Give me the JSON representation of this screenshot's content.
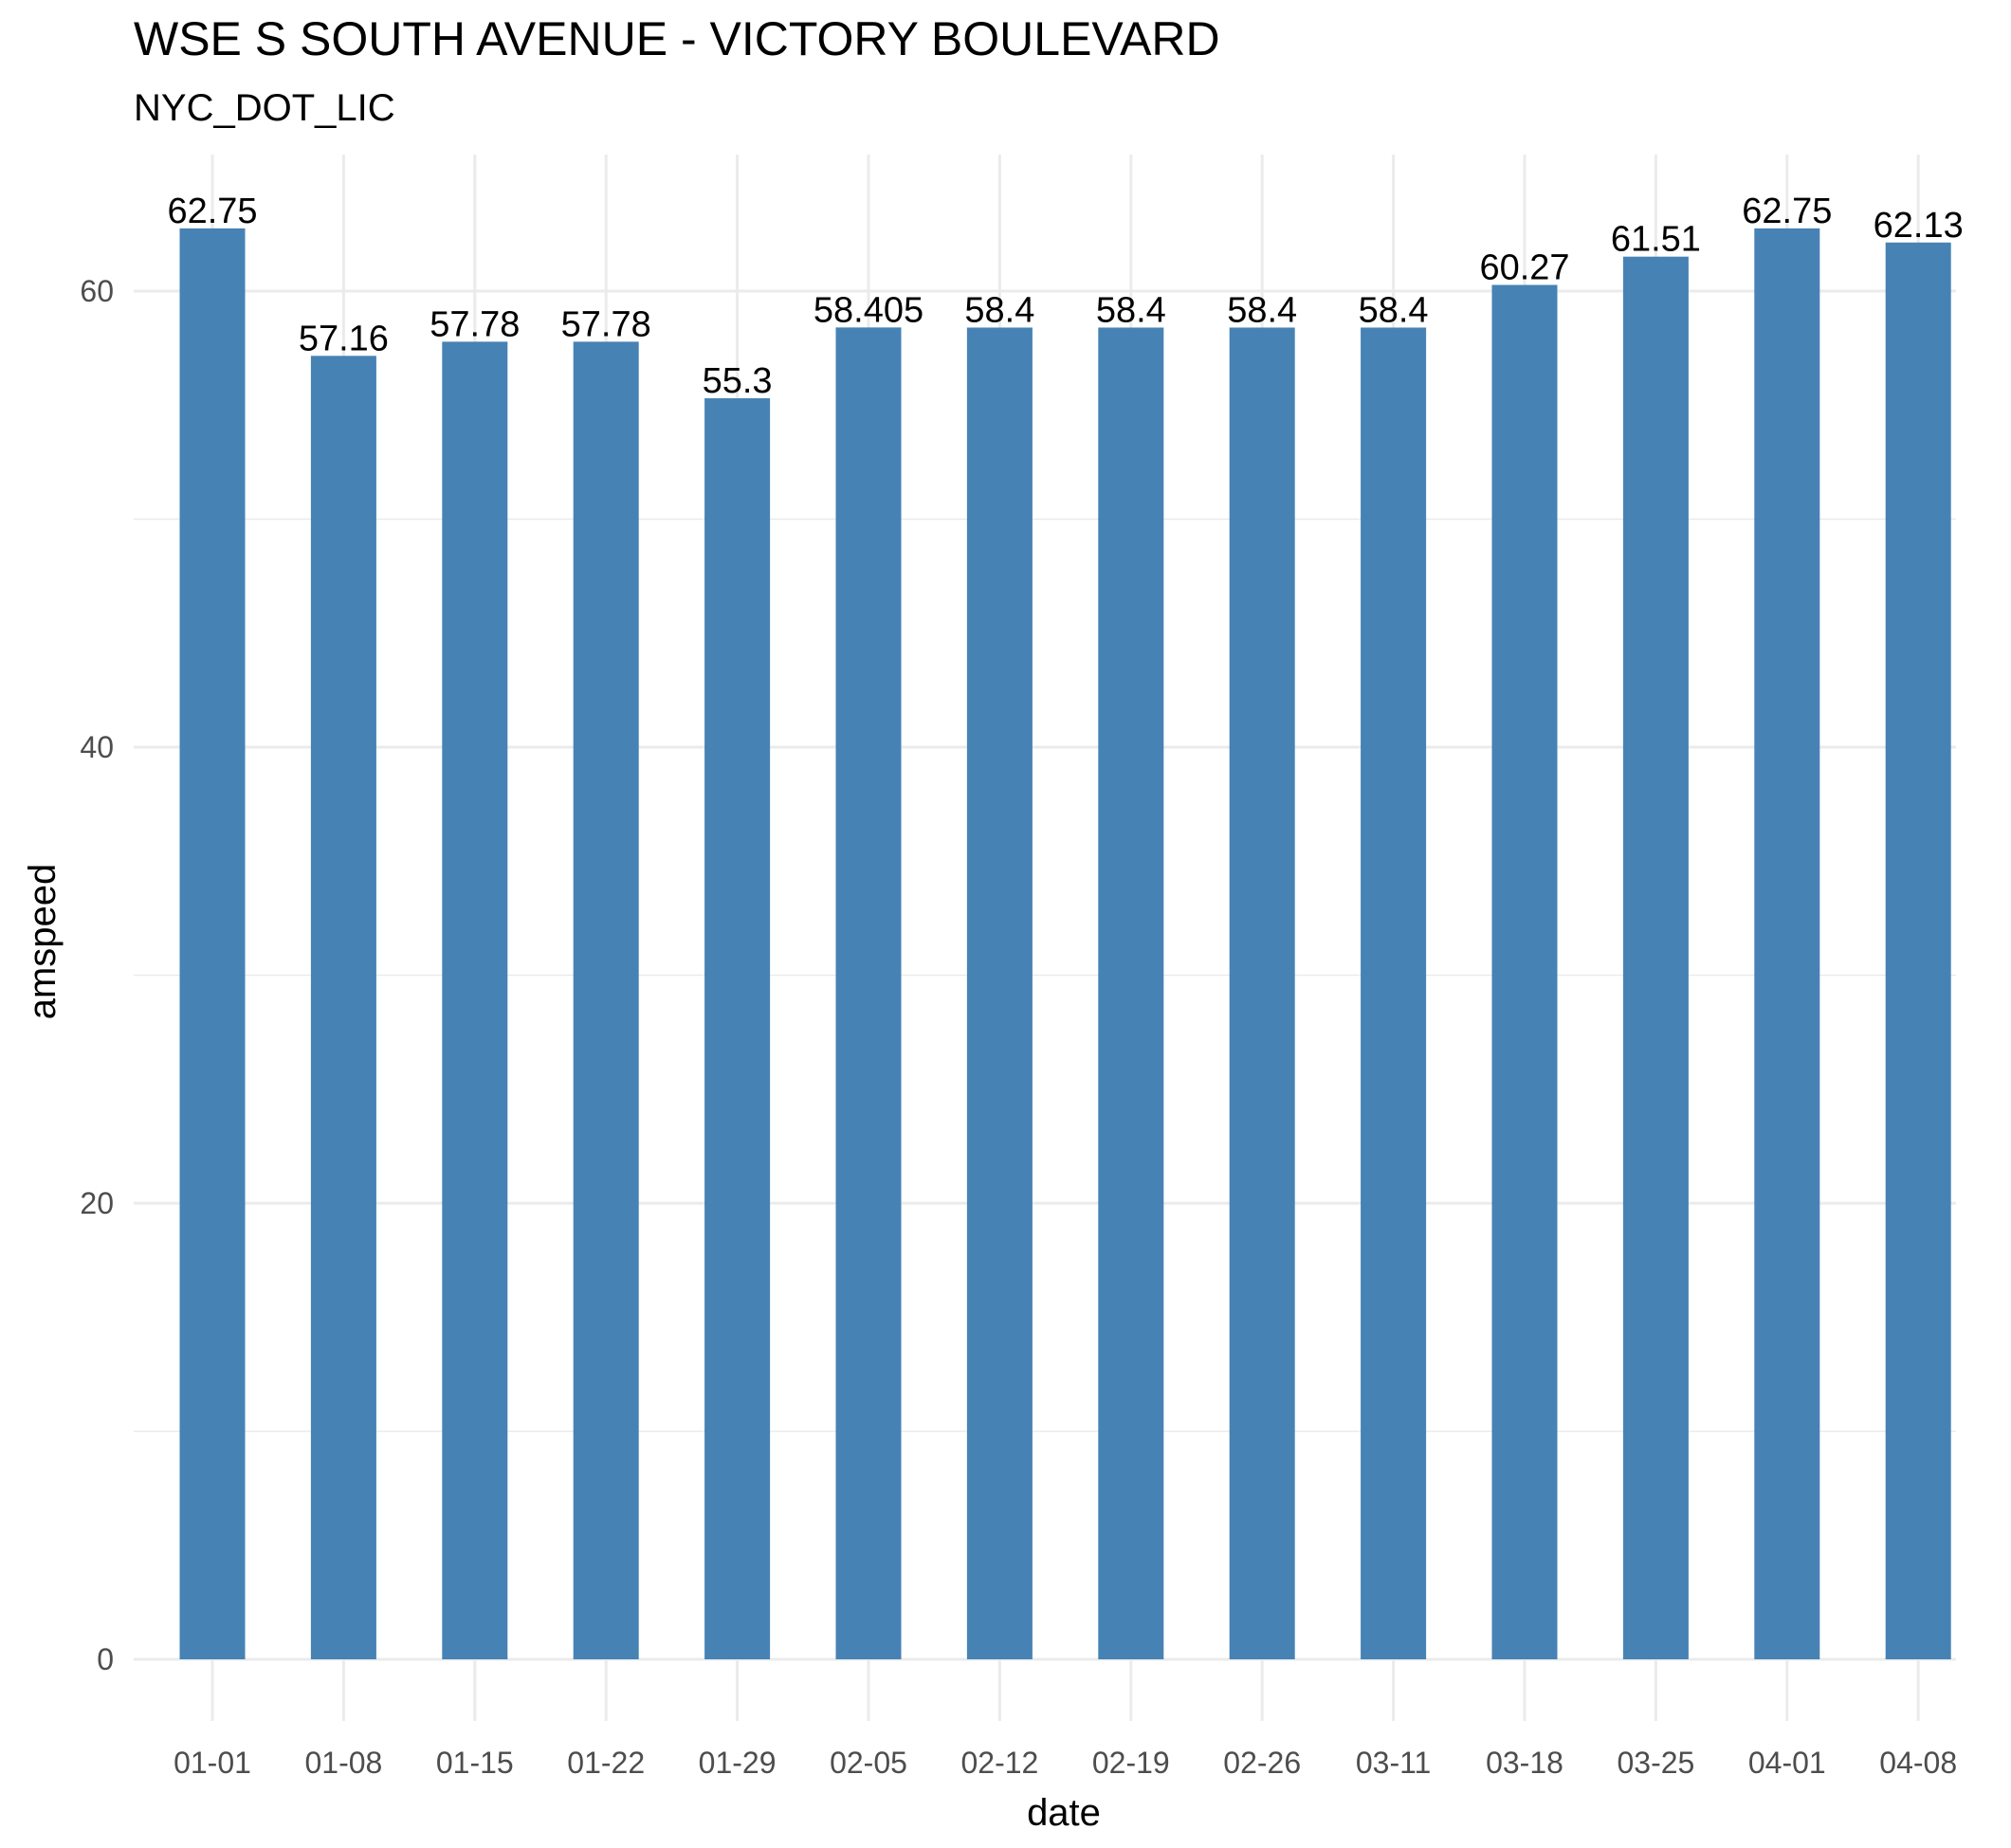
{
  "chart_data": {
    "type": "bar",
    "title": "WSE S SOUTH AVENUE - VICTORY BOULEVARD",
    "subtitle": "NYC_DOT_LIC",
    "xlabel": "date",
    "ylabel": "amspeed",
    "categories": [
      "01-01",
      "01-08",
      "01-15",
      "01-22",
      "01-29",
      "02-05",
      "02-12",
      "02-19",
      "02-26",
      "03-11",
      "03-18",
      "03-25",
      "04-01",
      "04-08"
    ],
    "values": [
      62.75,
      57.16,
      57.78,
      57.78,
      55.3,
      58.405,
      58.4,
      58.4,
      58.4,
      58.4,
      60.27,
      61.51,
      62.75,
      62.13
    ],
    "value_labels": [
      "62.75",
      "57.16",
      "57.78",
      "57.78",
      "55.3",
      "58.405",
      "58.4",
      "58.4",
      "58.4",
      "58.4",
      "60.27",
      "61.51",
      "62.75",
      "62.13"
    ],
    "y_ticks": [
      0,
      20,
      40,
      60
    ],
    "y_tick_labels": [
      "0",
      "20",
      "40",
      "60"
    ],
    "ylim": [
      0,
      65
    ],
    "grid": true,
    "legend": "none",
    "bar_color": "#4682B4",
    "grid_color": "#EBEBEB"
  }
}
